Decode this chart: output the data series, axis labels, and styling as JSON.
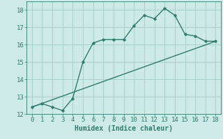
{
  "xlabel": "Humidex (Indice chaleur)",
  "line1_x": [
    0,
    1,
    2,
    3,
    4,
    5,
    6,
    7,
    8,
    9,
    10,
    11,
    12,
    13,
    14,
    15,
    16,
    17,
    18
  ],
  "line1_y": [
    12.4,
    12.6,
    12.4,
    12.2,
    12.9,
    15.0,
    16.1,
    16.3,
    16.3,
    16.3,
    17.1,
    17.7,
    17.5,
    18.1,
    17.7,
    16.6,
    16.5,
    16.2,
    16.2
  ],
  "line2_x": [
    0,
    18
  ],
  "line2_y": [
    12.4,
    16.2
  ],
  "line_color": "#2d7c6e",
  "bg_color": "#ceeae6",
  "grid_color": "#a8d0ca",
  "xlim": [
    -0.5,
    18.5
  ],
  "ylim": [
    12,
    18.5
  ],
  "xticks": [
    0,
    1,
    2,
    3,
    4,
    5,
    6,
    7,
    8,
    9,
    10,
    11,
    12,
    13,
    14,
    15,
    16,
    17,
    18
  ],
  "yticks": [
    12,
    13,
    14,
    15,
    16,
    17,
    18
  ],
  "marker": "o",
  "markersize": 2.5,
  "linewidth": 1.0,
  "tick_fontsize": 6.5,
  "xlabel_fontsize": 7.0
}
